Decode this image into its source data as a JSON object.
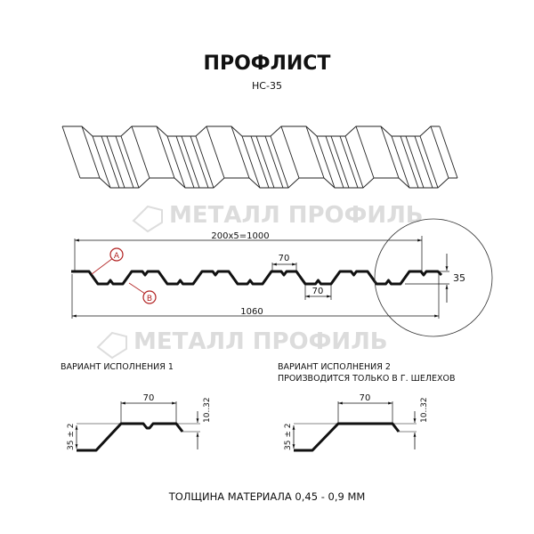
{
  "title": "ПРОФЛИСТ",
  "subtitle": "НС-35",
  "watermark": "МЕТАЛЛ ПРОФИЛЬ",
  "profile": {
    "dim_pitch": "200x5=1000",
    "dim_total": "1060",
    "dim_top_width": "70",
    "dim_bottom_width": "70",
    "dim_height": "35",
    "label_a": "A",
    "label_b": "B"
  },
  "variant1": {
    "title": "ВАРИАНТ ИСПОЛНЕНИЯ 1",
    "dim_width": "70",
    "dim_height": "35 ± 2",
    "dim_edge": "10..32"
  },
  "variant2": {
    "title": "ВАРИАНТ ИСПОЛНЕНИЯ 2",
    "note": "ПРОИЗВОДИТСЯ ТОЛЬКО В Г. ШЕЛЕХОВ",
    "dim_width": "70",
    "dim_height": "35 ± 2",
    "dim_edge": "10..32"
  },
  "footer": "ТОЛЩИНА МАТЕРИАЛА 0,45 - 0,9 ММ",
  "colors": {
    "line": "#111111",
    "accent": "#b22222",
    "watermark": "#dddddd"
  }
}
